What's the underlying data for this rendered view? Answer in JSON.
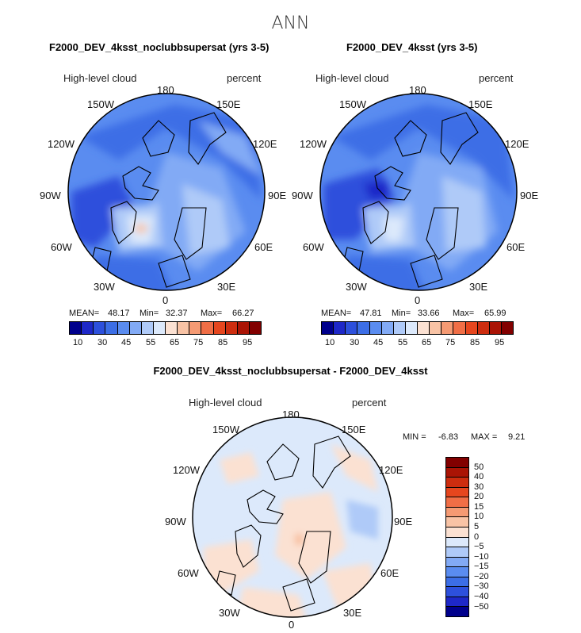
{
  "title": "ANN",
  "panels": [
    {
      "id": "panel1",
      "title": "F2000_DEV_4ksst_noclubbsupersat (yrs 3-5)",
      "variable": "High-level cloud",
      "units": "percent",
      "stats": {
        "mean_label": "MEAN=",
        "mean": "48.17",
        "min_label": "Min=",
        "min": "32.37",
        "max_label": "Max=",
        "max": "66.27"
      }
    },
    {
      "id": "panel2",
      "title": "F2000_DEV_4ksst (yrs 3-5)",
      "variable": "High-level cloud",
      "units": "percent",
      "stats": {
        "mean_label": "MEAN=",
        "mean": "47.81",
        "min_label": "Min=",
        "min": "33.66",
        "max_label": "Max=",
        "max": "65.99"
      }
    },
    {
      "id": "panel3",
      "title": "F2000_DEV_4ksst_noclubbsupersat - F2000_DEV_4ksst",
      "variable": "High-level cloud",
      "units": "percent",
      "stats": {
        "min_label": "MIN =",
        "min": "-6.83",
        "max_label": "MAX =",
        "max": "9.21"
      }
    }
  ],
  "longitude_labels": [
    "180",
    "150E",
    "120E",
    "90E",
    "60E",
    "30E",
    "0",
    "30W",
    "60W",
    "90W",
    "120W",
    "150W"
  ],
  "colorbar_abs": {
    "labels": [
      "10",
      "30",
      "45",
      "55",
      "65",
      "75",
      "85",
      "95"
    ],
    "colors": [
      "#00008c",
      "#1e28c8",
      "#2d50dc",
      "#3c6ee6",
      "#5a8cf0",
      "#82aaf5",
      "#afcaf8",
      "#dce9fb",
      "#fbe1d2",
      "#f8c3a5",
      "#f59a73",
      "#f06e46",
      "#e6461e",
      "#cd2d0f",
      "#aa1405",
      "#820000"
    ]
  },
  "colorbar_diff": {
    "labels": [
      "50",
      "40",
      "30",
      "20",
      "15",
      "10",
      "5",
      "0",
      "−5",
      "−10",
      "−15",
      "−20",
      "−30",
      "−40",
      "−50"
    ],
    "colors": [
      "#820000",
      "#aa1405",
      "#cd2d0f",
      "#e6461e",
      "#f06e46",
      "#f59a73",
      "#f8c3a5",
      "#fbe1d2",
      "#dce9fb",
      "#afcaf8",
      "#82aaf5",
      "#5a8cf0",
      "#3c6ee6",
      "#2d50dc",
      "#1e28c8",
      "#00008c"
    ]
  }
}
